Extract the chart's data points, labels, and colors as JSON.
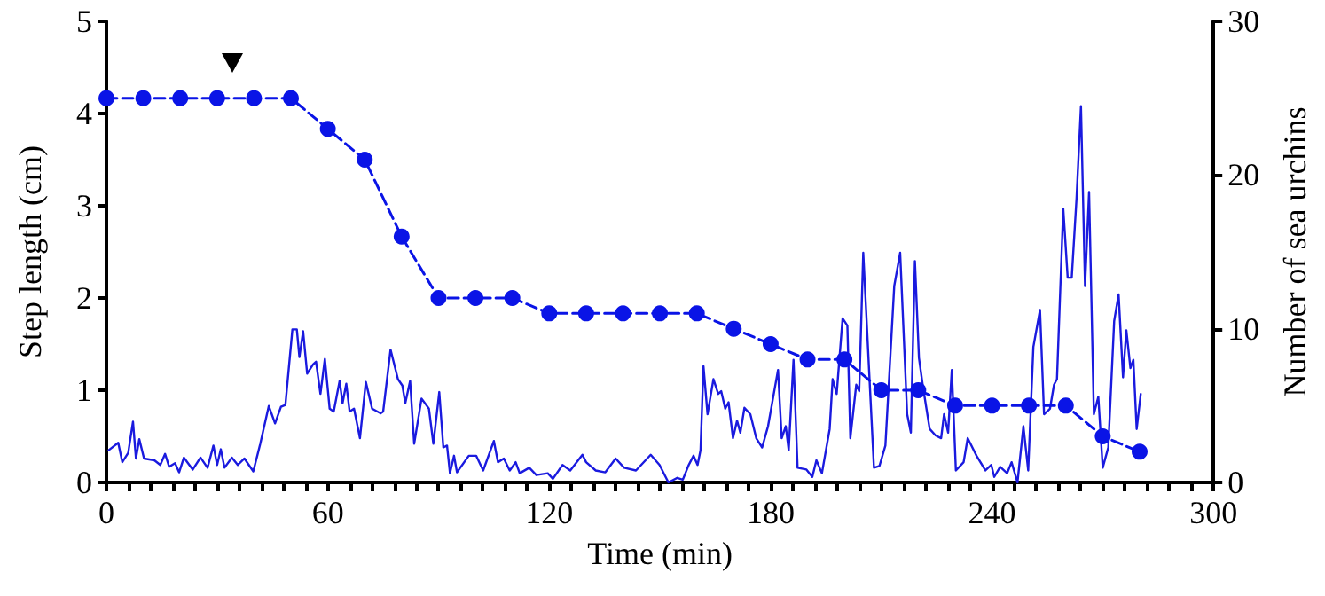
{
  "chart_data": {
    "type": "line",
    "xlabel": "Time (min)",
    "ylabel": "Step length (cm)",
    "y2label": "Number of sea urchins",
    "xlim": [
      0,
      300
    ],
    "xticks": [
      0,
      {
        "value": 6,
        "label": null
      },
      {
        "value": 12,
        "label": null
      },
      {
        "value": 18,
        "label": null
      },
      {
        "value": 24,
        "label": null
      },
      {
        "value": 30,
        "label": null
      },
      {
        "value": 36,
        "label": null
      },
      {
        "value": 42,
        "label": null
      },
      {
        "value": 48,
        "label": null
      },
      {
        "value": 54,
        "label": null
      },
      60,
      {
        "value": 66,
        "label": null
      },
      {
        "value": 72,
        "label": null
      },
      {
        "value": 78,
        "label": null
      },
      {
        "value": 84,
        "label": null
      },
      {
        "value": 90,
        "label": null
      },
      {
        "value": 96,
        "label": null
      },
      {
        "value": 102,
        "label": null
      },
      {
        "value": 108,
        "label": null
      },
      {
        "value": 114,
        "label": null
      },
      120,
      {
        "value": 126,
        "label": null
      },
      {
        "value": 132,
        "label": null
      },
      {
        "value": 138,
        "label": null
      },
      {
        "value": 144,
        "label": null
      },
      {
        "value": 150,
        "label": null
      },
      {
        "value": 156,
        "label": null
      },
      {
        "value": 162,
        "label": null
      },
      {
        "value": 168,
        "label": null
      },
      {
        "value": 174,
        "label": null
      },
      180,
      {
        "value": 186,
        "label": null
      },
      {
        "value": 192,
        "label": null
      },
      {
        "value": 198,
        "label": null
      },
      {
        "value": 204,
        "label": null
      },
      {
        "value": 210,
        "label": null
      },
      {
        "value": 216,
        "label": null
      },
      {
        "value": 222,
        "label": null
      },
      {
        "value": 228,
        "label": null
      },
      {
        "value": 234,
        "label": null
      },
      240,
      {
        "value": 246,
        "label": null
      },
      {
        "value": 252,
        "label": null
      },
      {
        "value": 258,
        "label": null
      },
      {
        "value": 264,
        "label": null
      },
      {
        "value": 270,
        "label": null
      },
      {
        "value": 276,
        "label": null
      },
      {
        "value": 282,
        "label": null
      },
      {
        "value": 288,
        "label": null
      },
      {
        "value": 294,
        "label": null
      },
      300
    ],
    "ylim": [
      0,
      5
    ],
    "yticks": [
      0,
      1,
      2,
      3,
      4,
      5
    ],
    "y2lim": [
      0,
      30
    ],
    "y2ticks": [
      0,
      10,
      20,
      30
    ],
    "series": [
      {
        "color": "#1a1adf",
        "marker": "none",
        "line_style": "solid",
        "x": [
          0.6,
          3.2,
          4.3,
          5.9,
          7.2,
          8,
          8.9,
          10.2,
          13,
          14.6,
          15.9,
          17,
          18.6,
          19.7,
          21,
          23.4,
          25.5,
          27.4,
          29,
          30,
          31,
          32,
          34,
          35.6,
          37.4,
          39.8,
          41.7,
          44,
          45.7,
          47.3,
          48.5,
          50.4,
          51.6,
          52.3,
          53.3,
          54.4,
          56,
          56.8,
          58,
          59.2,
          60.5,
          61.6,
          63.2,
          64,
          65,
          65.9,
          67.1,
          68.7,
          70.3,
          72,
          74.3,
          75,
          77,
          79,
          80.2,
          81,
          82.3,
          83.4,
          85.4,
          87.4,
          88.6,
          90.2,
          91.3,
          92.3,
          93.1,
          94.2,
          95,
          98.2,
          100.2,
          102.1,
          105,
          106.1,
          107.7,
          109.3,
          110.9,
          112,
          114.6,
          116.5,
          119.6,
          121,
          123.6,
          125.7,
          129,
          130,
          132.6,
          135.2,
          138,
          140.3,
          143.5,
          147.5,
          149.9,
          152.3,
          154.7,
          156.2,
          157.8,
          159.1,
          160.2,
          161,
          161.8,
          162.9,
          164.5,
          165.8,
          166.6,
          167.7,
          168.6,
          169.8,
          170.9,
          171.8,
          172.9,
          174.5,
          176.1,
          177.7,
          179.3,
          182,
          183,
          184.1,
          184.9,
          186.2,
          187.3,
          189.7,
          191.3,
          192.4,
          193.9,
          196,
          196.8,
          197.9,
          199.5,
          200.8,
          201.6,
          203.2,
          204,
          205.1,
          208,
          209.5,
          211.1,
          213.5,
          215.1,
          217,
          218,
          219.1,
          220.2,
          221.2,
          223.1,
          224.7,
          226.2,
          227,
          228.1,
          229.1,
          230.2,
          232.3,
          233.4,
          235.8,
          238.2,
          239.8,
          240.6,
          242.2,
          244.1,
          245.3,
          246.9,
          248.5,
          249.8,
          251.2,
          253,
          254.1,
          255.7,
          256.8,
          257.6,
          259.3,
          260.5,
          261.6,
          262.9,
          264.1,
          265.2,
          266.3,
          267.6,
          268.8,
          270,
          271.5,
          273.1,
          274.3,
          275.5,
          276.4,
          277.5,
          278.3,
          279.2,
          280.3
        ],
        "values": [
          0.35,
          0.43,
          0.22,
          0.32,
          0.66,
          0.26,
          0.47,
          0.26,
          0.24,
          0.19,
          0.31,
          0.17,
          0.21,
          0.11,
          0.27,
          0.14,
          0.27,
          0.16,
          0.4,
          0.19,
          0.36,
          0.16,
          0.27,
          0.19,
          0.26,
          0.12,
          0.42,
          0.83,
          0.64,
          0.82,
          0.84,
          1.66,
          1.66,
          1.36,
          1.64,
          1.18,
          1.28,
          1.31,
          0.96,
          1.34,
          0.8,
          0.77,
          1.1,
          0.86,
          1.07,
          0.77,
          0.8,
          0.48,
          1.09,
          0.8,
          0.75,
          0.77,
          1.44,
          1.12,
          1.05,
          0.86,
          1.1,
          0.42,
          0.91,
          0.8,
          0.42,
          0.98,
          0.38,
          0.4,
          0.1,
          0.29,
          0.11,
          0.29,
          0.29,
          0.13,
          0.45,
          0.22,
          0.26,
          0.13,
          0.22,
          0.1,
          0.16,
          0.08,
          0.1,
          0.04,
          0.19,
          0.13,
          0.3,
          0.22,
          0.13,
          0.11,
          0.26,
          0.16,
          0.13,
          0.3,
          0.19,
          0,
          0.05,
          0.03,
          0.19,
          0.29,
          0.19,
          0.35,
          1.26,
          0.74,
          1.12,
          0.96,
          0.99,
          0.8,
          0.87,
          0.48,
          0.67,
          0.54,
          0.81,
          0.74,
          0.48,
          0.38,
          0.61,
          1.22,
          0.48,
          0.61,
          0.35,
          1.33,
          0.16,
          0.14,
          0.06,
          0.24,
          0.1,
          0.58,
          1.12,
          0.96,
          1.78,
          1.7,
          0.48,
          1.06,
          0.99,
          2.49,
          0.16,
          0.18,
          0.4,
          2.13,
          2.49,
          0.74,
          0.54,
          2.4,
          1.35,
          1.06,
          0.58,
          0.51,
          0.48,
          0.74,
          0.54,
          1.22,
          0.13,
          0.22,
          0.48,
          0.29,
          0.13,
          0.19,
          0.06,
          0.17,
          0.1,
          0.22,
          0,
          0.61,
          0.13,
          1.47,
          1.87,
          0.74,
          0.8,
          1.06,
          1.12,
          2.97,
          2.22,
          2.22,
          3.08,
          4.08,
          2.13,
          3.15,
          0.74,
          0.93,
          0.16,
          0.38,
          1.75,
          2.04,
          1.14,
          1.65,
          1.24,
          1.33,
          0.58,
          0.96
        ]
      },
      {
        "color": "#0a14e6",
        "axis": "y2",
        "marker": "circle",
        "line_style": "dashed",
        "x": [
          0,
          10,
          20,
          30,
          40,
          50,
          60,
          70,
          80,
          90,
          100,
          110,
          120,
          130,
          140,
          150,
          160,
          170,
          180,
          190,
          200,
          210,
          220,
          230,
          240,
          250,
          260,
          270,
          280
        ],
        "values": [
          25,
          25,
          25,
          25,
          25,
          25,
          23,
          21,
          16,
          12,
          12,
          12,
          11,
          11,
          11,
          11,
          11,
          10,
          9,
          8,
          8,
          6,
          6,
          5,
          5,
          5,
          5,
          3,
          2
        ]
      }
    ]
  }
}
